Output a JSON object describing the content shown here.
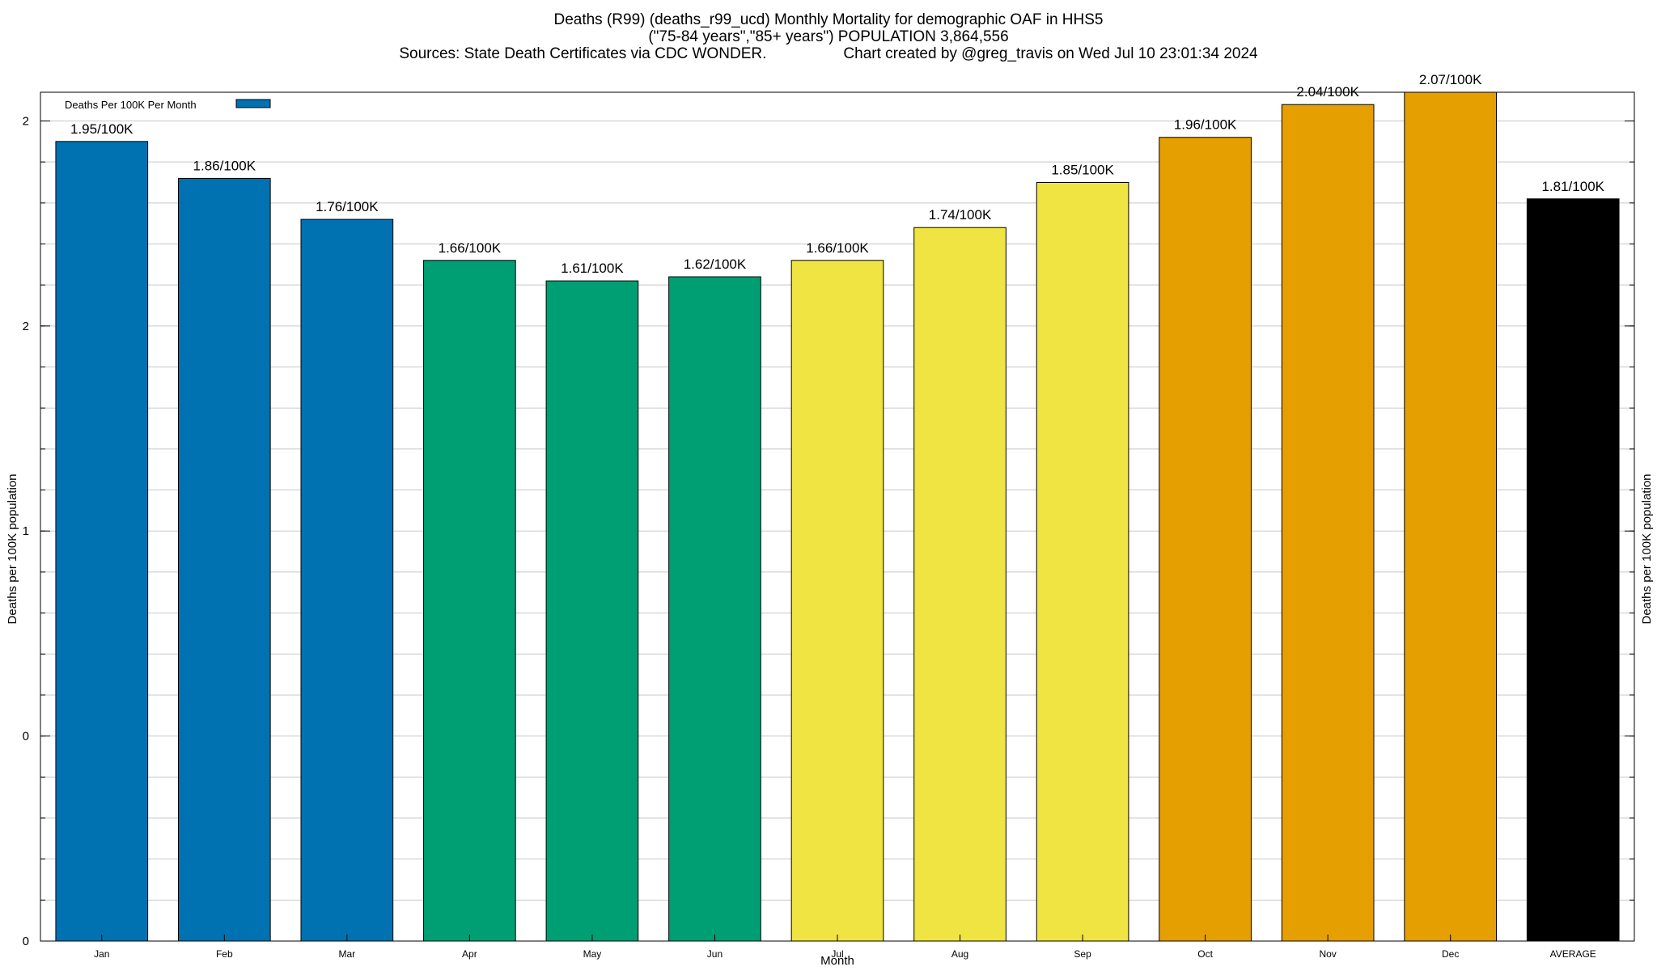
{
  "chart_data": {
    "type": "bar",
    "title": "Deaths (R99) (deaths_r99_ucd) Monthly Mortality for demographic OAF in HHS5",
    "subtitle": "(\"75-84 years\",\"85+ years\") POPULATION 3,864,556",
    "sources": "Sources: State Death Certificates via CDC WONDER.",
    "credit": "Chart created by @greg_travis on Wed Jul 10 23:01:34 2024",
    "xlabel": "Month",
    "ylabel": "Deaths per 100K population",
    "ylabel_right": "Deaths per 100K population",
    "legend": {
      "label": "Deaths Per 100K Per Month",
      "color": "#0072b2",
      "position": "top-left"
    },
    "categories": [
      "Jan",
      "Feb",
      "Mar",
      "Apr",
      "May",
      "Jun",
      "Jul",
      "Aug",
      "Sep",
      "Oct",
      "Nov",
      "Dec",
      "AVERAGE"
    ],
    "values": [
      1.95,
      1.86,
      1.76,
      1.66,
      1.61,
      1.62,
      1.66,
      1.74,
      1.85,
      1.96,
      2.04,
      2.07,
      1.81
    ],
    "data_labels": [
      "1.95/100K",
      "1.86/100K",
      "1.76/100K",
      "1.66/100K",
      "1.61/100K",
      "1.62/100K",
      "1.66/100K",
      "1.74/100K",
      "1.85/100K",
      "1.96/100K",
      "2.04/100K",
      "2.07/100K",
      "1.81/100K"
    ],
    "colors": [
      "#0072b2",
      "#0072b2",
      "#0072b2",
      "#009e73",
      "#009e73",
      "#009e73",
      "#f0e442",
      "#f0e442",
      "#f0e442",
      "#e69f00",
      "#e69f00",
      "#e69f00",
      "#000000"
    ],
    "ylim": [
      0,
      2.07
    ],
    "y_ticks": [
      {
        "value": 0,
        "label": "0"
      },
      {
        "value": 0.5,
        "label": "0"
      },
      {
        "value": 1.0,
        "label": "1"
      },
      {
        "value": 1.5,
        "label": "2"
      },
      {
        "value": 2.0,
        "label": "2"
      }
    ],
    "grid": true
  }
}
